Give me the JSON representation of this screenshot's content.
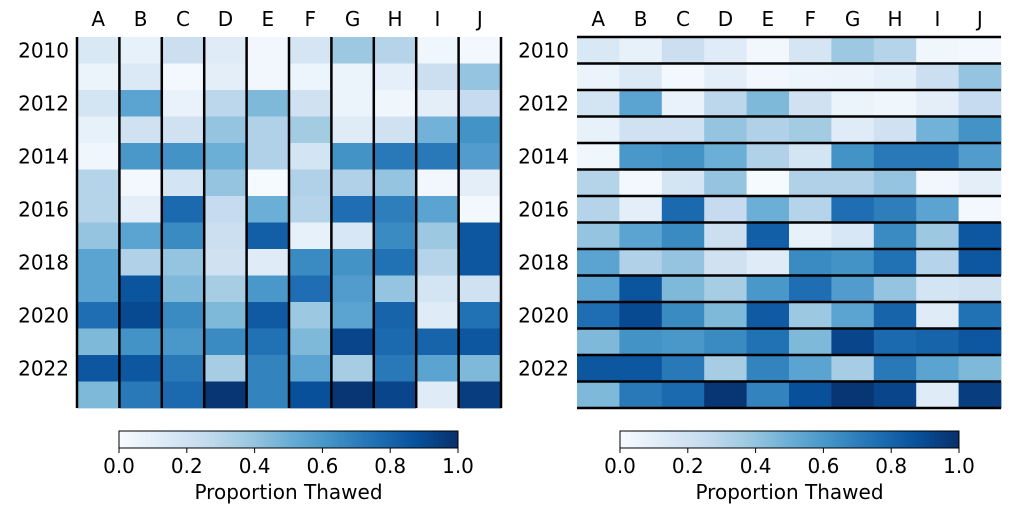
{
  "chart_data": [
    {
      "type": "heatmap",
      "separators": "vertical",
      "columns": [
        "A",
        "B",
        "C",
        "D",
        "E",
        "F",
        "G",
        "H",
        "I",
        "J"
      ],
      "rows": [
        "2010",
        "2011",
        "2012",
        "2013",
        "2014",
        "2015",
        "2016",
        "2017",
        "2018",
        "2019",
        "2020",
        "2021",
        "2022",
        "2023"
      ],
      "row_tick_labels": [
        "2010",
        "2012",
        "2014",
        "2016",
        "2018",
        "2020",
        "2022"
      ],
      "colorbar": {
        "label": "Proportion Thawed",
        "ticks": [
          "0.0",
          "0.2",
          "0.4",
          "0.6",
          "0.8",
          "1.0"
        ],
        "range": [
          0,
          1
        ],
        "colormap": "Blues"
      },
      "values": [
        [
          0.15,
          0.08,
          0.22,
          0.12,
          0.03,
          0.17,
          0.38,
          0.3,
          0.04,
          0.02
        ],
        [
          0.06,
          0.14,
          0.02,
          0.1,
          0.03,
          0.05,
          0.06,
          0.09,
          0.22,
          0.4
        ],
        [
          0.18,
          0.55,
          0.07,
          0.28,
          0.45,
          0.2,
          0.06,
          0.04,
          0.1,
          0.25
        ],
        [
          0.08,
          0.2,
          0.2,
          0.4,
          0.32,
          0.36,
          0.12,
          0.2,
          0.48,
          0.62
        ],
        [
          0.04,
          0.6,
          0.62,
          0.5,
          0.32,
          0.18,
          0.62,
          0.72,
          0.72,
          0.58
        ],
        [
          0.3,
          0.02,
          0.18,
          0.4,
          0.01,
          0.32,
          0.32,
          0.4,
          0.03,
          0.1
        ],
        [
          0.3,
          0.1,
          0.78,
          0.25,
          0.5,
          0.3,
          0.76,
          0.7,
          0.55,
          0.02
        ],
        [
          0.4,
          0.55,
          0.65,
          0.22,
          0.82,
          0.08,
          0.16,
          0.65,
          0.38,
          0.85
        ],
        [
          0.55,
          0.32,
          0.4,
          0.2,
          0.12,
          0.65,
          0.62,
          0.75,
          0.3,
          0.85
        ],
        [
          0.55,
          0.86,
          0.45,
          0.35,
          0.6,
          0.76,
          0.58,
          0.4,
          0.18,
          0.2
        ],
        [
          0.76,
          0.9,
          0.65,
          0.45,
          0.84,
          0.38,
          0.55,
          0.8,
          0.12,
          0.75
        ],
        [
          0.45,
          0.62,
          0.6,
          0.65,
          0.75,
          0.45,
          0.92,
          0.78,
          0.8,
          0.85
        ],
        [
          0.85,
          0.85,
          0.72,
          0.35,
          0.68,
          0.55,
          0.35,
          0.72,
          0.55,
          0.45
        ],
        [
          0.45,
          0.72,
          0.78,
          0.98,
          0.68,
          0.88,
          0.98,
          0.92,
          0.12,
          0.95
        ]
      ]
    },
    {
      "type": "heatmap",
      "separators": "horizontal",
      "columns": [
        "A",
        "B",
        "C",
        "D",
        "E",
        "F",
        "G",
        "H",
        "I",
        "J"
      ],
      "rows": [
        "2010",
        "2011",
        "2012",
        "2013",
        "2014",
        "2015",
        "2016",
        "2017",
        "2018",
        "2019",
        "2020",
        "2021",
        "2022",
        "2023"
      ],
      "row_tick_labels": [
        "2010",
        "2012",
        "2014",
        "2016",
        "2018",
        "2020",
        "2022"
      ],
      "colorbar": {
        "label": "Proportion Thawed",
        "ticks": [
          "0.0",
          "0.2",
          "0.4",
          "0.6",
          "0.8",
          "1.0"
        ],
        "range": [
          0,
          1
        ],
        "colormap": "Blues"
      },
      "values": [
        [
          0.15,
          0.08,
          0.22,
          0.12,
          0.03,
          0.17,
          0.38,
          0.3,
          0.04,
          0.02
        ],
        [
          0.06,
          0.14,
          0.02,
          0.1,
          0.03,
          0.05,
          0.06,
          0.09,
          0.22,
          0.4
        ],
        [
          0.18,
          0.55,
          0.07,
          0.28,
          0.45,
          0.2,
          0.06,
          0.04,
          0.1,
          0.25
        ],
        [
          0.08,
          0.2,
          0.2,
          0.4,
          0.32,
          0.36,
          0.12,
          0.2,
          0.48,
          0.62
        ],
        [
          0.04,
          0.6,
          0.62,
          0.5,
          0.32,
          0.18,
          0.62,
          0.72,
          0.72,
          0.58
        ],
        [
          0.3,
          0.02,
          0.18,
          0.4,
          0.01,
          0.32,
          0.32,
          0.4,
          0.03,
          0.1
        ],
        [
          0.3,
          0.1,
          0.78,
          0.25,
          0.5,
          0.3,
          0.76,
          0.7,
          0.55,
          0.02
        ],
        [
          0.4,
          0.55,
          0.65,
          0.22,
          0.82,
          0.08,
          0.16,
          0.65,
          0.38,
          0.85
        ],
        [
          0.55,
          0.32,
          0.4,
          0.2,
          0.12,
          0.65,
          0.62,
          0.75,
          0.3,
          0.85
        ],
        [
          0.55,
          0.86,
          0.45,
          0.35,
          0.6,
          0.76,
          0.58,
          0.4,
          0.18,
          0.2
        ],
        [
          0.76,
          0.9,
          0.65,
          0.45,
          0.84,
          0.38,
          0.55,
          0.8,
          0.12,
          0.75
        ],
        [
          0.45,
          0.62,
          0.6,
          0.65,
          0.75,
          0.45,
          0.92,
          0.78,
          0.8,
          0.85
        ],
        [
          0.85,
          0.85,
          0.72,
          0.35,
          0.68,
          0.55,
          0.35,
          0.72,
          0.55,
          0.45
        ],
        [
          0.45,
          0.72,
          0.78,
          0.98,
          0.68,
          0.88,
          0.98,
          0.92,
          0.12,
          0.95
        ]
      ]
    }
  ]
}
